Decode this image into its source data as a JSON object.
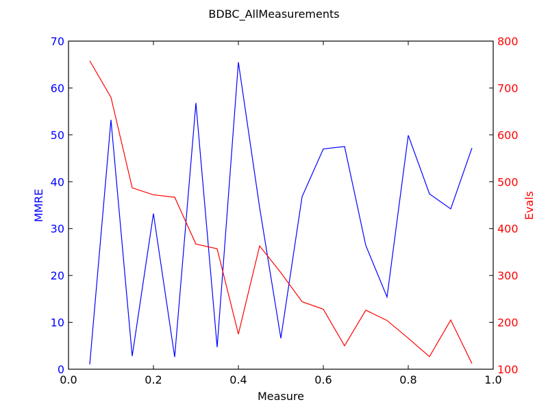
{
  "chart_data": {
    "type": "line",
    "title": "BDBC_AllMeasurements",
    "xlabel": "Measure",
    "ylabel_left": "MMRE",
    "ylabel_right": "Evals",
    "xlim": [
      0.0,
      1.0
    ],
    "ylim_left": [
      0,
      70
    ],
    "ylim_right": [
      100,
      800
    ],
    "x_ticks": [
      "0.0",
      "0.2",
      "0.4",
      "0.6",
      "0.8",
      "1.0"
    ],
    "y_left_ticks": [
      "0",
      "10",
      "20",
      "30",
      "40",
      "50",
      "60",
      "70"
    ],
    "y_right_ticks": [
      "100",
      "200",
      "300",
      "400",
      "500",
      "600",
      "700",
      "800"
    ],
    "grid": false,
    "colors": {
      "left_axis": "#0000ff",
      "right_axis": "#ff0000",
      "frame": "#000000"
    },
    "x": [
      0.05,
      0.1,
      0.15,
      0.2,
      0.25,
      0.3,
      0.35,
      0.4,
      0.45,
      0.5,
      0.55,
      0.6,
      0.65,
      0.7,
      0.75,
      0.8,
      0.85,
      0.9,
      0.95
    ],
    "series": [
      {
        "axis": "left",
        "color": "#0000ff",
        "values": [
          1.0,
          53.2,
          2.8,
          33.2,
          2.6,
          56.8,
          4.7,
          65.5,
          34.5,
          6.6,
          36.8,
          47.0,
          47.5,
          26.4,
          15.4,
          49.9,
          37.4,
          34.2,
          47.2
        ]
      },
      {
        "axis": "right",
        "color": "#ff0000",
        "values": [
          758,
          680,
          487,
          472,
          467,
          367,
          357,
          175,
          363,
          306,
          244,
          228,
          150,
          226,
          204,
          166,
          127,
          205,
          112
        ]
      }
    ]
  }
}
